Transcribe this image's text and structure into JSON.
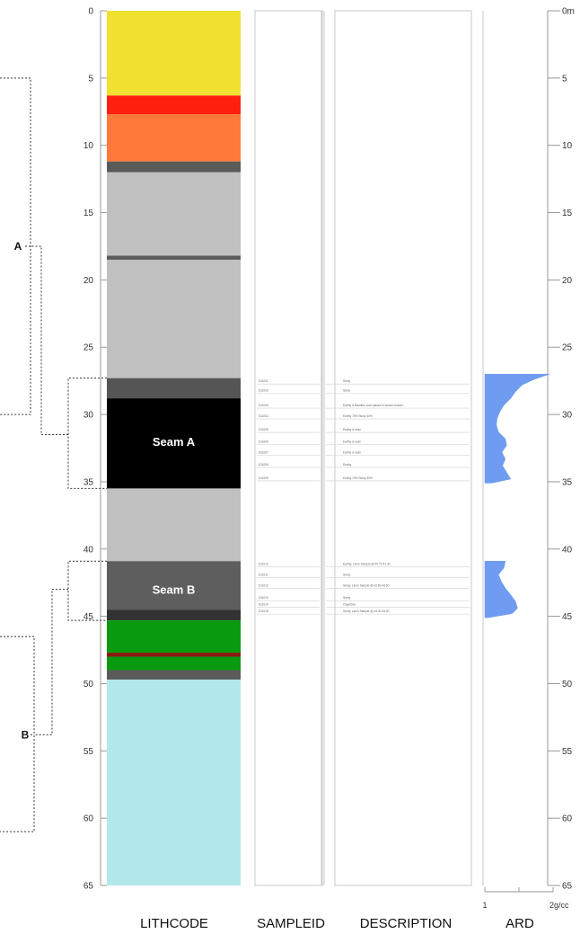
{
  "depth_axis": {
    "min": 0,
    "max": 65,
    "ticks": [
      0,
      5,
      10,
      15,
      20,
      25,
      30,
      35,
      40,
      45,
      50,
      55,
      60,
      65
    ],
    "right_top_label": "0m"
  },
  "columns": {
    "lithcode": "LITHCODE",
    "sampleid": "SAMPLEID",
    "description": "DESCRIPTION",
    "ard": "ARD"
  },
  "lith_layers": [
    {
      "top": 0,
      "bottom": 6.3,
      "color": "#f0e030"
    },
    {
      "top": 6.3,
      "bottom": 7.7,
      "color": "#ff2010"
    },
    {
      "top": 7.7,
      "bottom": 11.2,
      "color": "#ff7a3a"
    },
    {
      "top": 11.2,
      "bottom": 12.0,
      "color": "#5a5a5a"
    },
    {
      "top": 12.0,
      "bottom": 18.2,
      "color": "#c0c0c0"
    },
    {
      "top": 18.2,
      "bottom": 18.5,
      "color": "#5a5a5a"
    },
    {
      "top": 18.5,
      "bottom": 27.3,
      "color": "#c0c0c0"
    },
    {
      "top": 27.3,
      "bottom": 28.8,
      "color": "#555555"
    },
    {
      "top": 28.8,
      "bottom": 35.5,
      "color": "#000000"
    },
    {
      "top": 35.5,
      "bottom": 40.9,
      "color": "#c0c0c0"
    },
    {
      "top": 40.9,
      "bottom": 44.5,
      "color": "#5e5e5e"
    },
    {
      "top": 44.5,
      "bottom": 45.3,
      "color": "#333333"
    },
    {
      "top": 45.3,
      "bottom": 47.7,
      "color": "#0a9a10"
    },
    {
      "top": 47.7,
      "bottom": 48.0,
      "color": "#8a1a10"
    },
    {
      "top": 48.0,
      "bottom": 49.0,
      "color": "#0a9a10"
    },
    {
      "top": 49.0,
      "bottom": 49.7,
      "color": "#5a5a5a"
    },
    {
      "top": 49.7,
      "bottom": 65,
      "color": "#b3e8ea"
    }
  ],
  "seams": [
    {
      "label": "Seam A",
      "depth": 32.0
    },
    {
      "label": "Seam B",
      "depth": 43.0
    }
  ],
  "groups": [
    {
      "label": "A",
      "top": 5.0,
      "bottom": 30.0,
      "mid": 17.5
    },
    {
      "label": "B",
      "top": 46.5,
      "bottom": 61.0,
      "mid": 53.8
    }
  ],
  "sub_groups": [
    {
      "top": 27.3,
      "bottom": 35.5,
      "mid": 31.5,
      "ref": "A"
    },
    {
      "top": 40.9,
      "bottom": 45.3,
      "mid": 43.0,
      "ref": "B"
    }
  ],
  "samples": [
    {
      "depth": 27.6,
      "id": "S11001",
      "desc": "Stony"
    },
    {
      "depth": 28.3,
      "id": "S11002",
      "desc": "Stony"
    },
    {
      "depth": 29.4,
      "id": "S11003",
      "desc": "Earthy & Banded; core placed in broken bucket"
    },
    {
      "depth": 30.2,
      "id": "S11004",
      "desc": "Earthy 70% Stony 30%"
    },
    {
      "depth": 31.2,
      "id": "S11005",
      "desc": "Earthy & resin"
    },
    {
      "depth": 32.1,
      "id": "S11006",
      "desc": "Earthy & resin"
    },
    {
      "depth": 32.9,
      "id": "S11007",
      "desc": "Earthy & resin"
    },
    {
      "depth": 33.8,
      "id": "S11008",
      "desc": "Earthy"
    },
    {
      "depth": 34.8,
      "id": "S11009",
      "desc": "Earthy 70% Stony 30%"
    },
    {
      "depth": 41.2,
      "id": "S11010",
      "desc": "Earthy; Linen Sample @ 40.70-41.40"
    },
    {
      "depth": 42.0,
      "id": "S11011",
      "desc": "Stony"
    },
    {
      "depth": 42.8,
      "id": "S11012",
      "desc": "Stony; Linen Sample @ 42.60-43.50"
    },
    {
      "depth": 43.7,
      "id": "S11013",
      "desc": "Stony"
    },
    {
      "depth": 44.2,
      "id": "S11014",
      "desc": "Claystone"
    },
    {
      "depth": 44.7,
      "id": "S11015",
      "desc": "Stony; Linen Sample @ 44.30-44.90"
    }
  ],
  "ard": {
    "min": 1,
    "max": 2,
    "tick_values": [
      1,
      1.5,
      2
    ],
    "tick_labels": [
      "1",
      "",
      "2g/cc"
    ],
    "fill_color": "#6f9cf0",
    "segments": [
      [
        [
          27.0,
          1.95
        ],
        [
          27.4,
          1.72
        ],
        [
          27.8,
          1.55
        ],
        [
          28.3,
          1.45
        ],
        [
          28.8,
          1.38
        ],
        [
          29.3,
          1.28
        ],
        [
          29.8,
          1.22
        ],
        [
          30.3,
          1.18
        ],
        [
          30.8,
          1.17
        ],
        [
          31.3,
          1.2
        ],
        [
          31.8,
          1.3
        ],
        [
          32.3,
          1.32
        ],
        [
          32.8,
          1.25
        ],
        [
          33.3,
          1.3
        ],
        [
          33.8,
          1.26
        ],
        [
          34.3,
          1.32
        ],
        [
          34.8,
          1.38
        ],
        [
          35.1,
          1.1
        ]
      ],
      [
        [
          40.9,
          1.3
        ],
        [
          41.4,
          1.28
        ],
        [
          41.9,
          1.2
        ],
        [
          42.4,
          1.24
        ],
        [
          42.9,
          1.3
        ],
        [
          43.4,
          1.38
        ],
        [
          43.9,
          1.45
        ],
        [
          44.4,
          1.48
        ],
        [
          44.8,
          1.4
        ],
        [
          45.1,
          1.05
        ]
      ]
    ]
  }
}
